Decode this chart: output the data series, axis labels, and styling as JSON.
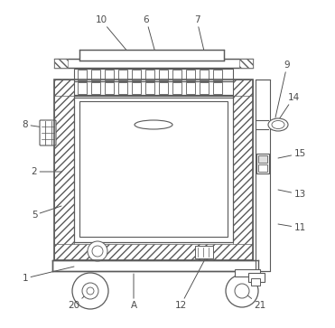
{
  "bg_color": "#ffffff",
  "line_color": "#5a5a5a",
  "label_color": "#4a4a4a",
  "annotations": [
    [
      "10",
      112,
      22,
      148,
      65
    ],
    [
      "6",
      162,
      22,
      178,
      80
    ],
    [
      "7",
      218,
      22,
      228,
      65
    ],
    [
      "8",
      28,
      138,
      62,
      143
    ],
    [
      "9",
      318,
      72,
      305,
      130
    ],
    [
      "14",
      325,
      108,
      305,
      138
    ],
    [
      "2",
      38,
      190,
      68,
      190
    ],
    [
      "15",
      332,
      170,
      308,
      175
    ],
    [
      "5",
      38,
      238,
      68,
      228
    ],
    [
      "13",
      332,
      215,
      308,
      210
    ],
    [
      "11",
      332,
      252,
      308,
      248
    ],
    [
      "1",
      28,
      308,
      82,
      295
    ],
    [
      "20",
      82,
      338,
      100,
      322
    ],
    [
      "A",
      148,
      338,
      148,
      303
    ],
    [
      "12",
      200,
      338,
      228,
      285
    ],
    [
      "21",
      288,
      338,
      268,
      322
    ]
  ]
}
